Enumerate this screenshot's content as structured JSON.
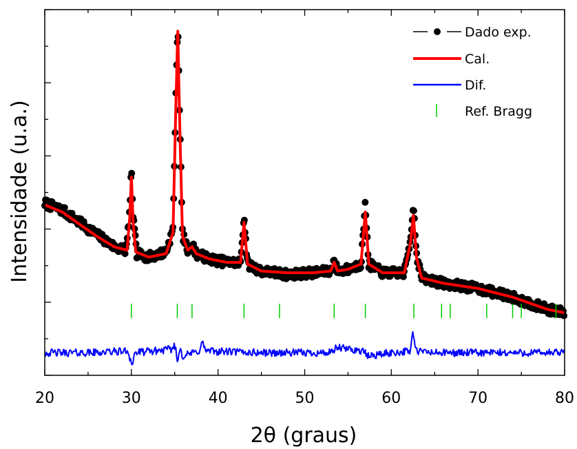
{
  "chart_data": {
    "type": "line",
    "xlabel": "2θ (graus)",
    "ylabel": "Intensidade (u.a.)",
    "xlim": [
      20,
      80
    ],
    "ylim": [
      0,
      100
    ],
    "x_ticks": [
      "20",
      "30",
      "40",
      "50",
      "60",
      "70",
      "80"
    ],
    "y_ticks_labeled": false,
    "grid": false,
    "legend_position": "top-right",
    "legend": [
      {
        "label": "Dado exp.",
        "marker": "line-circle",
        "color": "#000000"
      },
      {
        "label": "Cal.",
        "marker": "line",
        "color": "#ff0000"
      },
      {
        "label": "Dif.",
        "marker": "line",
        "color": "#0000ff"
      },
      {
        "label": "Ref. Bragg",
        "marker": "tick",
        "color": "#00cc00"
      }
    ],
    "series": [
      {
        "name": "Dado exp.",
        "color": "#000000",
        "x": [
          20.0,
          22.0,
          24.0,
          26.0,
          28.0,
          29.4,
          29.8,
          30.0,
          30.2,
          30.6,
          32.0,
          34.0,
          34.8,
          35.1,
          35.35,
          35.6,
          35.9,
          36.5,
          37.0,
          37.5,
          39.0,
          41.0,
          42.6,
          43.0,
          43.4,
          45.0,
          48.0,
          51.0,
          53.0,
          53.4,
          53.8,
          55.0,
          56.5,
          57.0,
          57.4,
          59.0,
          61.5,
          62.2,
          62.55,
          62.9,
          63.5,
          66.0,
          70.0,
          74.0,
          78.0,
          80.0
        ],
        "y": [
          47.5,
          45.5,
          42.0,
          38.5,
          35.0,
          34.0,
          45.0,
          57.0,
          44.0,
          33.0,
          32.0,
          33.5,
          40.0,
          75.0,
          100.0,
          70.0,
          38.5,
          34.0,
          35.5,
          33.0,
          31.5,
          30.5,
          30.5,
          44.0,
          30.0,
          28.0,
          27.0,
          27.5,
          28.0,
          31.0,
          28.0,
          28.5,
          30.0,
          47.5,
          30.0,
          27.5,
          27.5,
          37.0,
          47.5,
          33.0,
          26.0,
          24.5,
          23.0,
          20.5,
          17.0,
          16.0
        ]
      },
      {
        "name": "Cal.",
        "color": "#ff0000",
        "x": [
          20.0,
          22.0,
          24.0,
          26.0,
          28.0,
          29.5,
          29.8,
          30.0,
          30.2,
          30.5,
          32.0,
          34.0,
          34.8,
          35.1,
          35.35,
          35.6,
          35.9,
          36.5,
          37.0,
          37.5,
          39.0,
          41.0,
          42.6,
          43.0,
          43.4,
          45.0,
          48.0,
          51.0,
          53.0,
          53.4,
          53.8,
          55.0,
          56.5,
          57.0,
          57.4,
          59.0,
          61.5,
          62.2,
          62.55,
          62.9,
          63.5,
          66.0,
          70.0,
          74.0,
          78.0,
          80.0
        ],
        "y": [
          47.0,
          45.0,
          41.5,
          38.0,
          35.0,
          34.0,
          43.0,
          55.0,
          42.0,
          33.5,
          32.0,
          33.0,
          39.0,
          72.0,
          97.0,
          68.0,
          38.0,
          34.0,
          35.0,
          33.0,
          31.5,
          30.5,
          30.5,
          42.0,
          30.0,
          28.0,
          27.5,
          27.5,
          28.0,
          30.5,
          28.0,
          28.5,
          30.0,
          45.0,
          30.0,
          27.5,
          27.5,
          36.0,
          44.0,
          32.0,
          26.0,
          24.5,
          23.0,
          20.5,
          17.0,
          16.0
        ]
      },
      {
        "name": "Dif.",
        "color": "#0000ff",
        "x": [
          20.0,
          25.0,
          29.6,
          29.9,
          30.1,
          30.4,
          34.7,
          35.0,
          35.35,
          35.6,
          35.9,
          37.8,
          38.2,
          38.6,
          45.0,
          50.0,
          53.3,
          53.6,
          56.8,
          57.2,
          60.0,
          62.2,
          62.5,
          62.8,
          65.0,
          70.0,
          75.0,
          80.0
        ],
        "y": [
          4.5,
          4.5,
          5.0,
          2.5,
          1.0,
          4.5,
          5.5,
          7.0,
          1.5,
          6.5,
          3.5,
          5.0,
          7.5,
          5.0,
          4.5,
          4.5,
          4.5,
          6.0,
          5.0,
          3.5,
          4.5,
          5.0,
          11.0,
          5.0,
          4.5,
          4.5,
          4.5,
          4.5
        ]
      }
    ],
    "bragg_positions": [
      30.0,
      35.3,
      37.0,
      43.0,
      47.1,
      53.4,
      57.0,
      62.6,
      65.8,
      66.8,
      71.0,
      74.0,
      75.0,
      79.0
    ]
  }
}
